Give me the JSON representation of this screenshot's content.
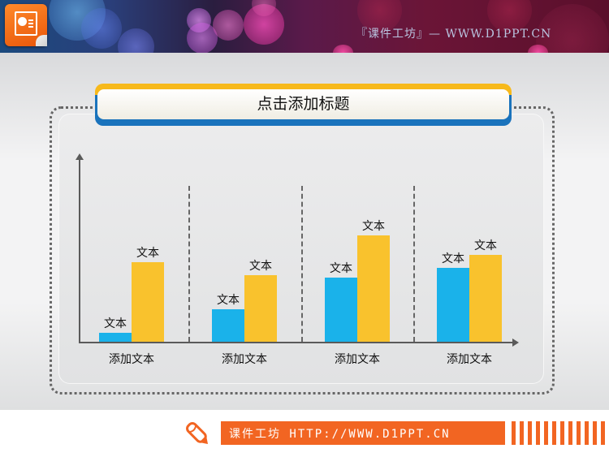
{
  "header": {
    "banner_text": "『课件工坊』— WWW.D1PPT.CN",
    "app_icon": "presentation-icon"
  },
  "slide": {
    "title": "点击添加标题"
  },
  "chart_data": {
    "type": "bar",
    "title": "点击添加标题",
    "categories": [
      "添加文本",
      "添加文本",
      "添加文本",
      "添加文本"
    ],
    "series": [
      {
        "name": "series-blue",
        "color": "#1ab2ea",
        "values": [
          11,
          40,
          79,
          91
        ],
        "labels": [
          "文本",
          "文本",
          "文本",
          "文本"
        ]
      },
      {
        "name": "series-yellow",
        "color": "#f9c22d",
        "values": [
          98,
          82,
          131,
          107
        ],
        "labels": [
          "文本",
          "文本",
          "文本",
          "文本"
        ]
      }
    ],
    "xlabel": "",
    "ylabel": "",
    "ylim": [
      0,
      220
    ],
    "grid": false,
    "legend": "none",
    "group_separators": "dashed"
  },
  "footer": {
    "text": "课件工坊 HTTP://WWW.D1PPT.CN",
    "icon": "pencil-icon",
    "accent": "#f26522"
  }
}
